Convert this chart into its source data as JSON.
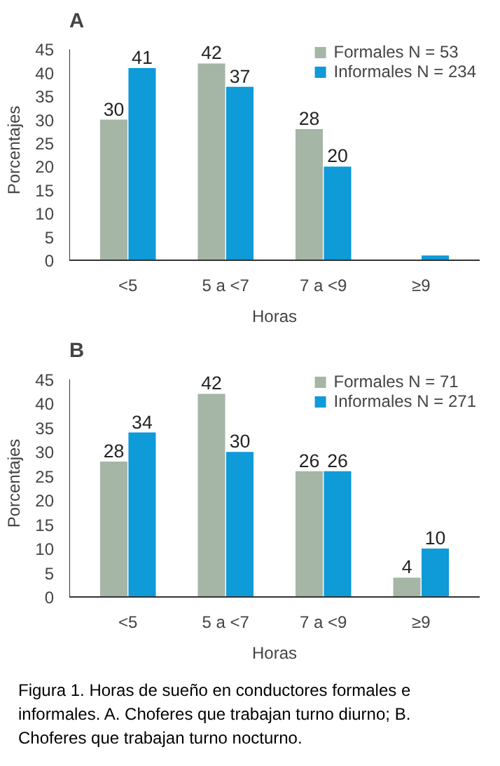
{
  "chart_data": [
    {
      "type": "bar",
      "title": "A",
      "xlabel": "Horas",
      "ylabel": "Porcentajes",
      "categories": [
        "<5",
        "5 a <7",
        "7 a <9",
        "≥9"
      ],
      "ylim": [
        0,
        45
      ],
      "yticks": [
        0,
        5,
        10,
        15,
        20,
        25,
        30,
        35,
        40,
        45
      ],
      "grid": false,
      "legend": "top right",
      "series": [
        {
          "name": "Formales N = 53",
          "color": "#a5b5a6",
          "values": [
            30,
            42,
            28,
            null
          ],
          "value_labels": [
            "30",
            "42",
            "28",
            null
          ]
        },
        {
          "name": "Informales N = 234",
          "color": "#0f9ad8",
          "values": [
            41,
            37,
            20,
            1
          ],
          "value_labels": [
            "41",
            "37",
            "20",
            null
          ]
        }
      ]
    },
    {
      "type": "bar",
      "title": "B",
      "xlabel": "Horas",
      "ylabel": "Porcentajes",
      "categories": [
        "<5",
        "5 a <7",
        "7 a <9",
        "≥9"
      ],
      "ylim": [
        0,
        45
      ],
      "yticks": [
        0,
        5,
        10,
        15,
        20,
        25,
        30,
        35,
        40,
        45
      ],
      "grid": false,
      "legend": "top right",
      "series": [
        {
          "name": "Formales N = 71",
          "color": "#a5b5a6",
          "values": [
            28,
            42,
            26,
            4
          ],
          "value_labels": [
            "28",
            "42",
            "26",
            "4"
          ]
        },
        {
          "name": "Informales N = 271",
          "color": "#0f9ad8",
          "values": [
            34,
            30,
            26,
            10
          ],
          "value_labels": [
            "34",
            "30",
            "26",
            "10"
          ]
        }
      ],
      "annotations": [
        "Figura 1. Horas de sueño en conductores formales e informales. A. Choferes que trabajan turno diurno; B. Choferes que trabajan turno nocturno."
      ]
    }
  ]
}
